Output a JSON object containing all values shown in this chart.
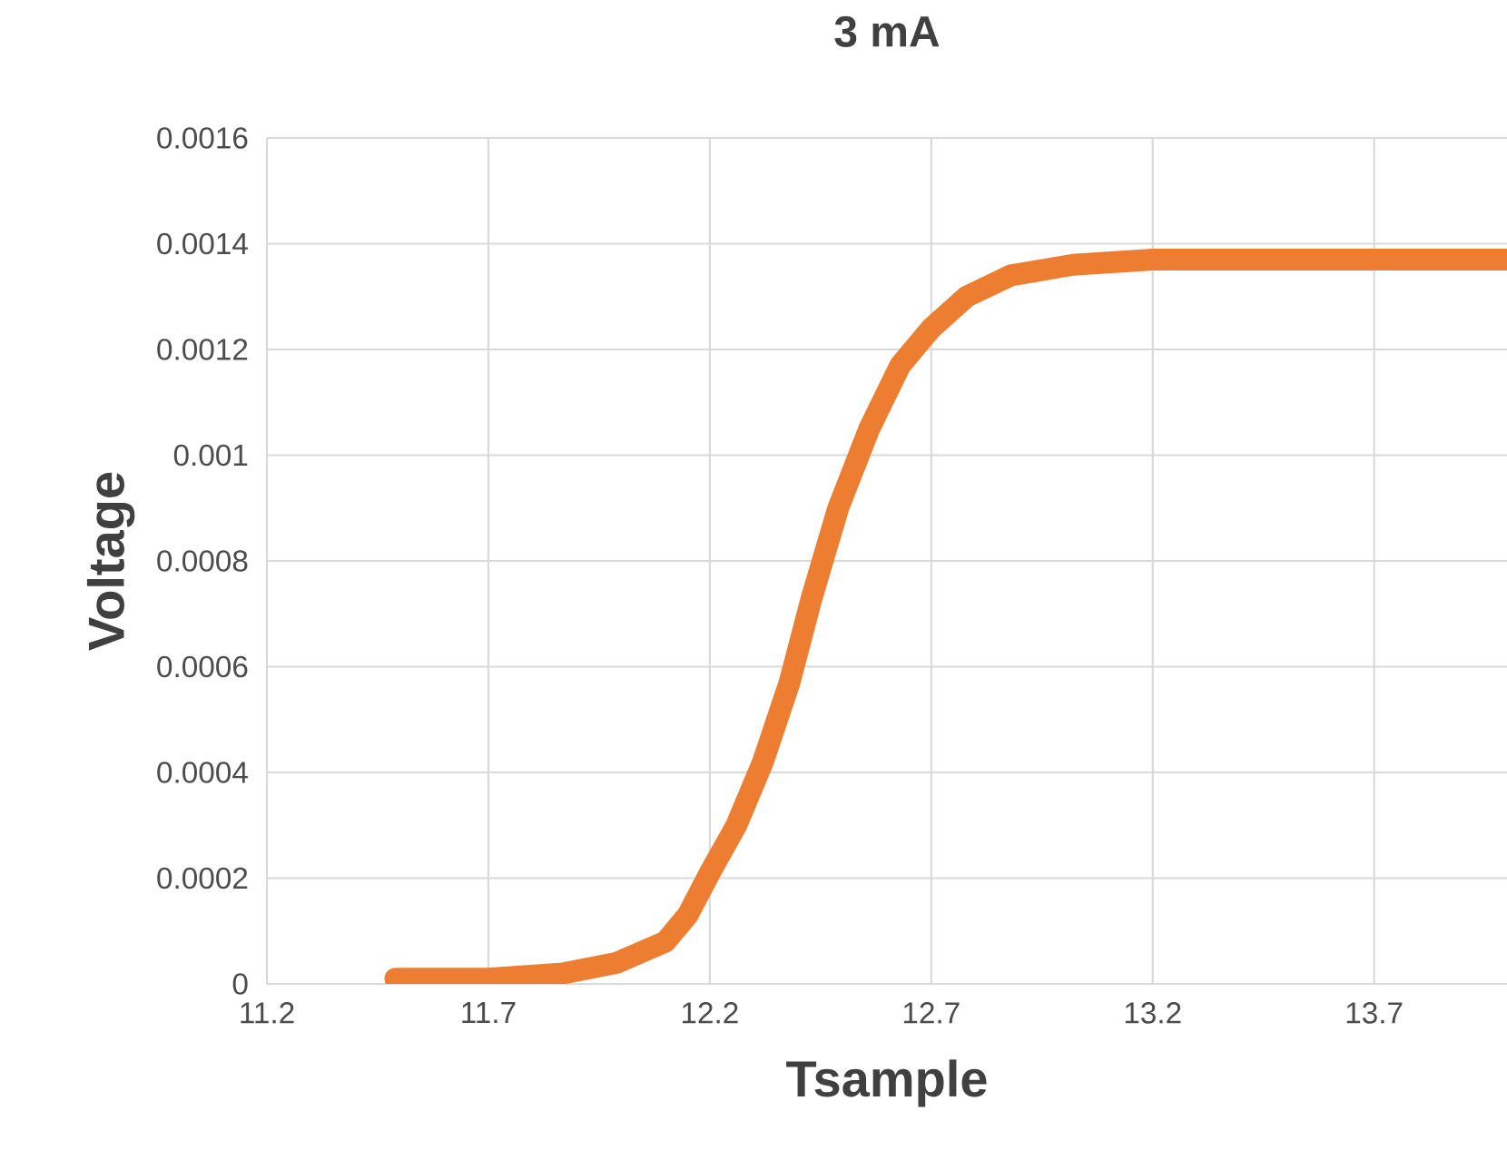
{
  "chart_data": {
    "type": "line",
    "title": "3 mA",
    "xlabel": "Tsample",
    "ylabel": "Voltage",
    "x": [
      11.49,
      11.7,
      11.87,
      11.99,
      12.1,
      12.15,
      12.2,
      12.26,
      12.32,
      12.38,
      12.43,
      12.49,
      12.56,
      12.63,
      12.7,
      12.78,
      12.88,
      13.02,
      13.2,
      13.48,
      13.7,
      14.0
    ],
    "values": [
      1e-05,
      1e-05,
      2e-05,
      4e-05,
      8e-05,
      0.00013,
      0.00021,
      0.0003,
      0.00042,
      0.00057,
      0.00073,
      0.0009,
      0.00105,
      0.00117,
      0.00124,
      0.0013,
      0.00134,
      0.00136,
      0.00137,
      0.00137,
      0.00137,
      0.00137
    ],
    "color": "#ed7d31",
    "xlim": [
      11.2,
      14.0
    ],
    "ylim": [
      0,
      0.0016
    ],
    "xticks": [
      11.2,
      11.7,
      12.2,
      12.7,
      13.2,
      13.7
    ],
    "yticks": [
      0,
      0.0002,
      0.0004,
      0.0006,
      0.0008,
      0.001,
      0.0012,
      0.0014,
      0.0016
    ],
    "grid": true
  }
}
